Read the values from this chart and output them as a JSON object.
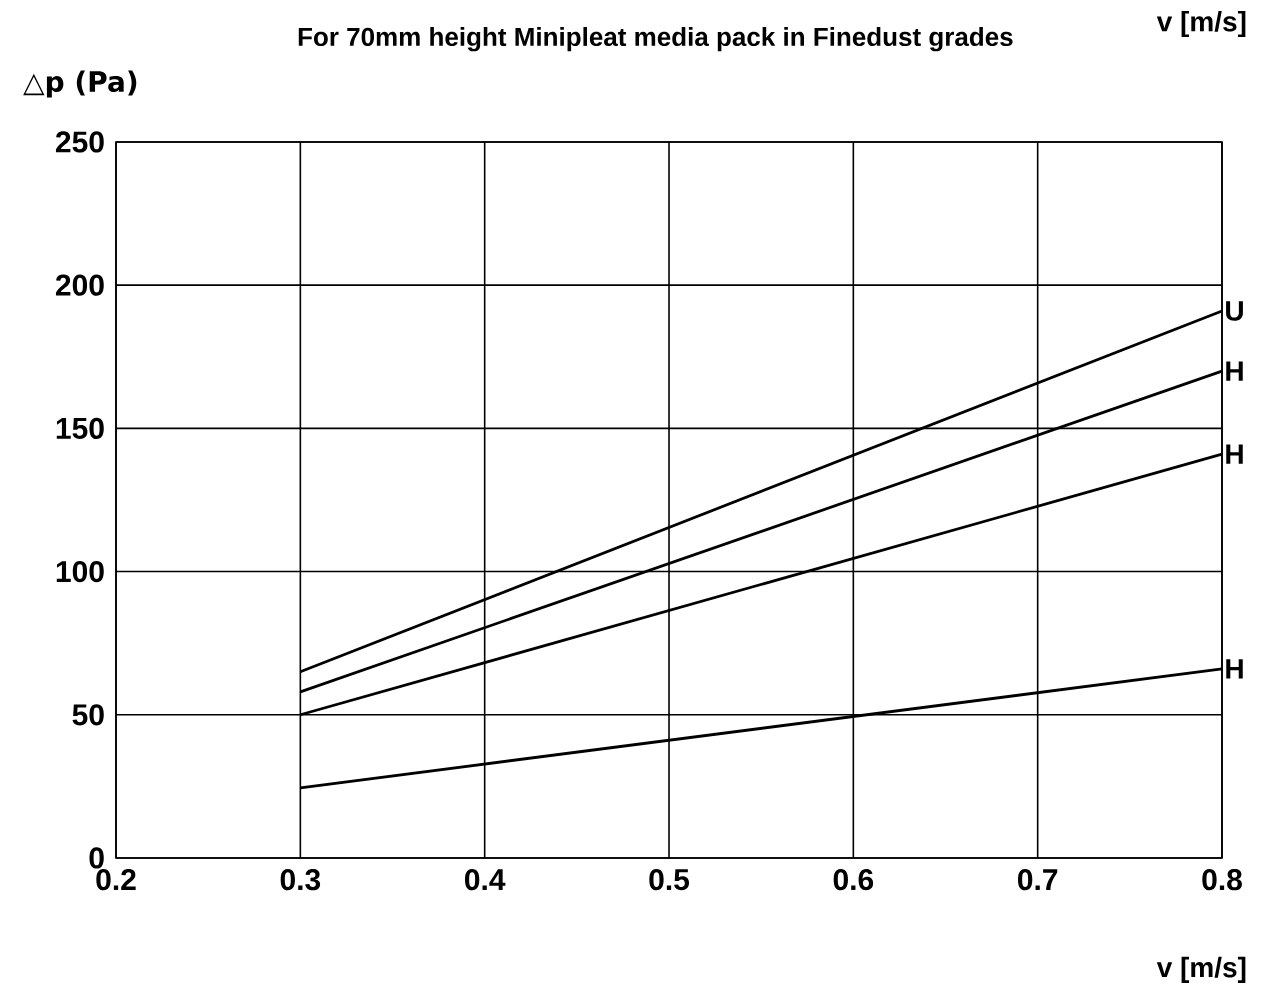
{
  "chart_data": {
    "type": "line",
    "title": "For 70mm height Minipleat media pack in Finedust grades",
    "xlabel": "v [m/s]",
    "ylabel": "△p (Pa)",
    "annotations": [
      "v [m/s]"
    ],
    "xlim": [
      0.2,
      0.8
    ],
    "xticks": [
      0.2,
      0.3,
      0.4,
      0.5,
      0.6,
      0.7,
      0.8
    ],
    "ylim": [
      0,
      250
    ],
    "yticks": [
      0,
      50,
      100,
      150,
      200,
      250
    ],
    "grid": true,
    "legend": false,
    "marker": "none",
    "line_style": "solid",
    "x": [
      0.3,
      0.8
    ],
    "series": [
      {
        "name": "U",
        "color": "#000000",
        "values": [
          65,
          191
        ]
      },
      {
        "name": "H",
        "color": "#000000",
        "values": [
          58,
          170
        ]
      },
      {
        "name": "H",
        "color": "#000000",
        "values": [
          50,
          141
        ]
      },
      {
        "name": "H",
        "color": "#000000",
        "values": [
          24.5,
          66
        ]
      }
    ]
  }
}
